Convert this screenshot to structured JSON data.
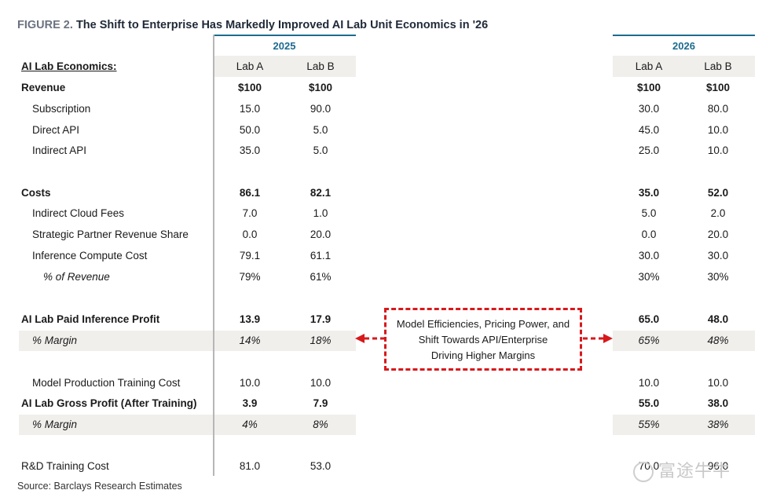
{
  "title": {
    "figure_num": "FIGURE 2.",
    "text": "The Shift to Enterprise Has Markedly Improved AI Lab Unit Economics in '26"
  },
  "years": {
    "y2025": "2025",
    "y2026": "2026"
  },
  "header": {
    "label": "AI Lab Economics:",
    "lab_a": "Lab A",
    "lab_b": "Lab B"
  },
  "rows": [
    {
      "label": "Revenue",
      "a25": "$100",
      "b25": "$100",
      "a26": "$100",
      "b26": "$100"
    },
    {
      "label": "Subscription",
      "a25": "15.0",
      "b25": "90.0",
      "a26": "30.0",
      "b26": "80.0"
    },
    {
      "label": "Direct API",
      "a25": "50.0",
      "b25": "5.0",
      "a26": "45.0",
      "b26": "10.0"
    },
    {
      "label": "Indirect API",
      "a25": "35.0",
      "b25": "5.0",
      "a26": "25.0",
      "b26": "10.0"
    },
    {
      "label": "Costs",
      "a25": "86.1",
      "b25": "82.1",
      "a26": "35.0",
      "b26": "52.0"
    },
    {
      "label": "Indirect Cloud Fees",
      "a25": "7.0",
      "b25": "1.0",
      "a26": "5.0",
      "b26": "2.0"
    },
    {
      "label": "Strategic Partner Revenue Share",
      "a25": "0.0",
      "b25": "20.0",
      "a26": "0.0",
      "b26": "20.0"
    },
    {
      "label": "Inference Compute Cost",
      "a25": "79.1",
      "b25": "61.1",
      "a26": "30.0",
      "b26": "30.0"
    },
    {
      "label": "% of Revenue",
      "a25": "79%",
      "b25": "61%",
      "a26": "30%",
      "b26": "30%"
    },
    {
      "label": "AI Lab Paid Inference Profit",
      "a25": "13.9",
      "b25": "17.9",
      "a26": "65.0",
      "b26": "48.0"
    },
    {
      "label": "% Margin",
      "a25": "14%",
      "b25": "18%",
      "a26": "65%",
      "b26": "48%"
    },
    {
      "label": "Model Production Training Cost",
      "a25": "10.0",
      "b25": "10.0",
      "a26": "10.0",
      "b26": "10.0"
    },
    {
      "label": "AI Lab Gross Profit (After Training)",
      "a25": "3.9",
      "b25": "7.9",
      "a26": "55.0",
      "b26": "38.0"
    },
    {
      "label": "% Margin",
      "a25": "4%",
      "b25": "8%",
      "a26": "55%",
      "b26": "38%"
    },
    {
      "label": "R&D Training Cost",
      "a25": "81.0",
      "b25": "53.0",
      "a26": "70.0",
      "b26": "96.0"
    }
  ],
  "callout": {
    "line1": "Model Efficiencies, Pricing Power, and",
    "line2": "Shift Towards API/Enterprise",
    "line3": "Driving Higher Margins",
    "color": "#d7191c"
  },
  "source": "Source: Barclays Research Estimates",
  "watermark": "富途牛牛",
  "colors": {
    "accent": "#1c6b8f",
    "shade": "#f0efec",
    "callout": "#d7191c"
  }
}
